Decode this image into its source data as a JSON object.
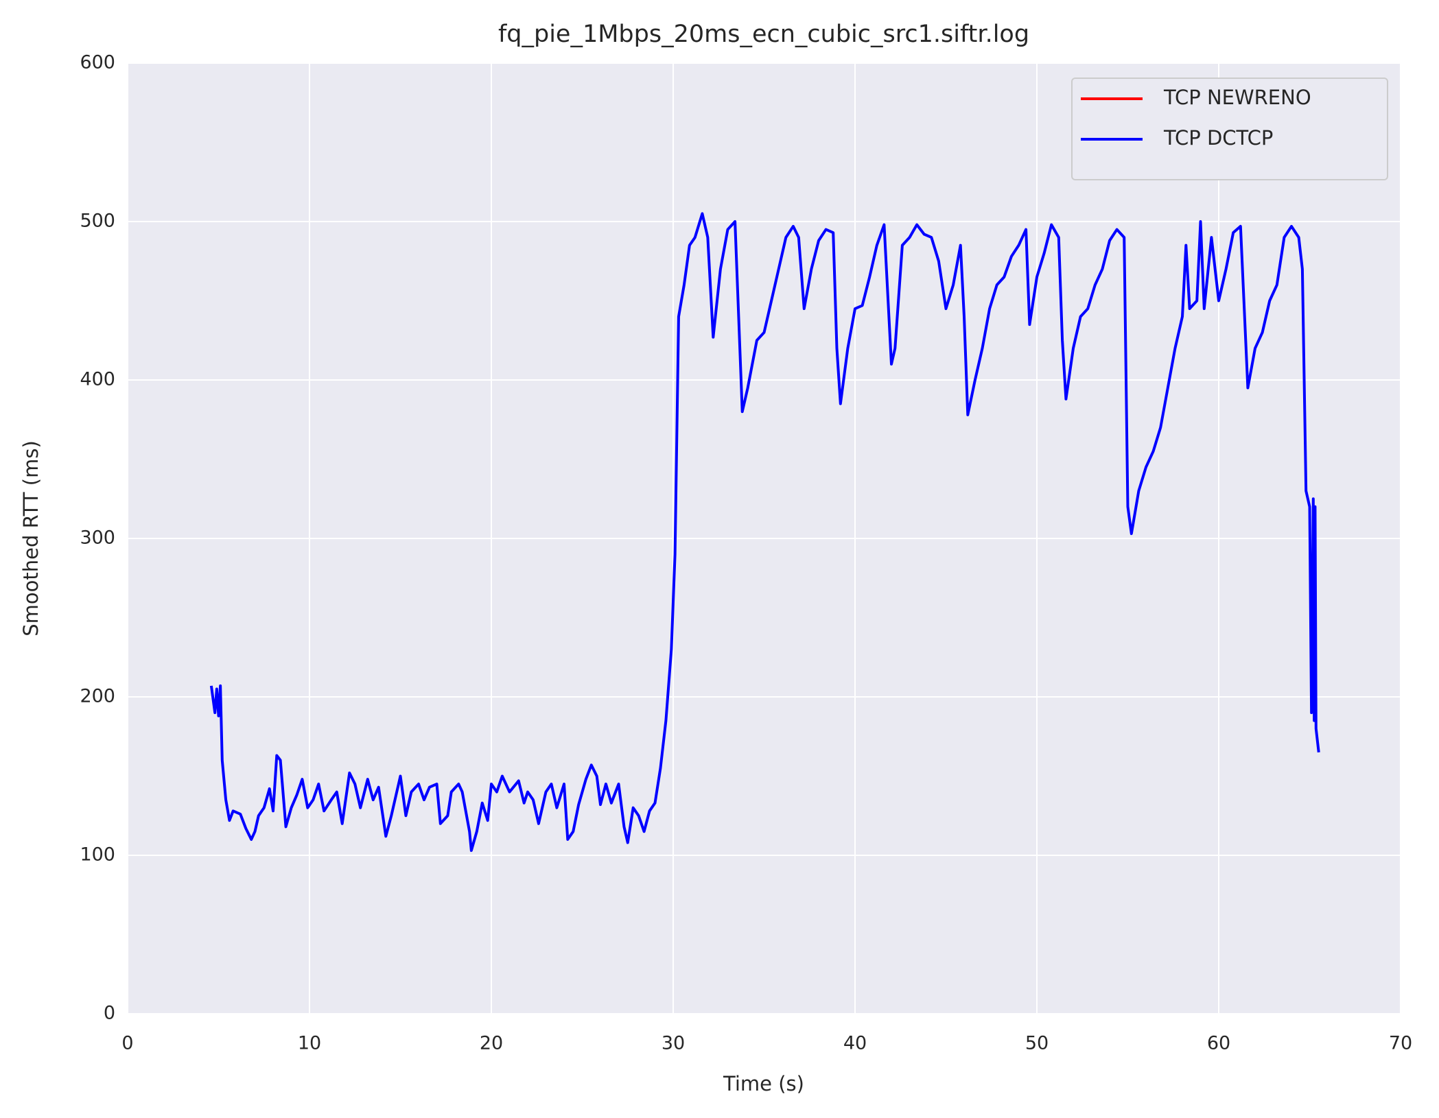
{
  "chart_data": {
    "type": "line",
    "title": "fq_pie_1Mbps_20ms_ecn_cubic_src1.siftr.log",
    "xlabel": "Time (s)",
    "ylabel": "Smoothed RTT (ms)",
    "xlim": [
      0,
      70
    ],
    "xticks": [
      0,
      10,
      20,
      30,
      40,
      50,
      60,
      70
    ],
    "ylim": [
      0,
      600
    ],
    "yticks": [
      0,
      100,
      200,
      300,
      400,
      500,
      600
    ],
    "grid": true,
    "legend": "upper right",
    "series": [
      {
        "name": "TCP NEWRENO",
        "color": "#ff0000",
        "x": [],
        "values": []
      },
      {
        "name": "TCP DCTCP",
        "color": "#0000ff",
        "x": [
          4.6,
          4.8,
          4.9,
          5.0,
          5.1,
          5.2,
          5.4,
          5.6,
          5.8,
          6.2,
          6.5,
          6.8,
          7.0,
          7.2,
          7.5,
          7.8,
          8.0,
          8.2,
          8.4,
          8.7,
          9.0,
          9.3,
          9.6,
          9.9,
          10.2,
          10.5,
          10.8,
          11.2,
          11.5,
          11.8,
          12.2,
          12.5,
          12.8,
          13.2,
          13.5,
          13.8,
          14.2,
          14.5,
          14.8,
          15.0,
          15.3,
          15.6,
          16.0,
          16.3,
          16.6,
          17.0,
          17.2,
          17.6,
          17.8,
          18.2,
          18.4,
          18.8,
          18.9,
          19.2,
          19.5,
          19.8,
          20.0,
          20.3,
          20.6,
          21.0,
          21.5,
          21.8,
          22.0,
          22.3,
          22.6,
          23.0,
          23.3,
          23.6,
          24.0,
          24.2,
          24.5,
          24.8,
          25.2,
          25.5,
          25.8,
          26.0,
          26.3,
          26.6,
          27.0,
          27.3,
          27.5,
          27.8,
          28.1,
          28.4,
          28.7,
          29.0,
          29.3,
          29.6,
          29.9,
          30.1,
          30.3,
          30.6,
          30.9,
          31.2,
          31.6,
          31.9,
          32.2,
          32.6,
          33.0,
          33.4,
          33.8,
          34.1,
          34.6,
          35.0,
          35.4,
          35.8,
          36.2,
          36.6,
          36.9,
          37.2,
          37.6,
          38.0,
          38.4,
          38.8,
          39.0,
          39.2,
          39.6,
          40.0,
          40.4,
          40.8,
          41.2,
          41.6,
          42.0,
          42.2,
          42.6,
          43.0,
          43.4,
          43.8,
          44.2,
          44.6,
          45.0,
          45.4,
          45.8,
          46.0,
          46.2,
          46.6,
          47.0,
          47.4,
          47.8,
          48.2,
          48.6,
          49.0,
          49.4,
          49.6,
          50.0,
          50.4,
          50.8,
          51.2,
          51.4,
          51.6,
          52.0,
          52.4,
          52.8,
          53.2,
          53.6,
          54.0,
          54.4,
          54.8,
          55.0,
          55.2,
          55.6,
          56.0,
          56.4,
          56.8,
          57.2,
          57.6,
          58.0,
          58.2,
          58.4,
          58.8,
          59.0,
          59.2,
          59.6,
          60.0,
          60.4,
          60.8,
          61.2,
          61.6,
          62.0,
          62.4,
          62.8,
          63.2,
          63.6,
          64.0,
          64.4,
          64.6,
          64.8,
          65.0,
          65.1,
          65.2,
          65.25,
          65.3,
          65.35,
          65.5
        ],
        "values": [
          207,
          190,
          205,
          188,
          207,
          160,
          135,
          122,
          128,
          126,
          117,
          110,
          115,
          125,
          130,
          142,
          128,
          163,
          160,
          118,
          130,
          138,
          148,
          130,
          135,
          145,
          128,
          135,
          140,
          120,
          152,
          145,
          130,
          148,
          135,
          143,
          112,
          125,
          140,
          150,
          125,
          140,
          145,
          135,
          143,
          145,
          120,
          125,
          140,
          145,
          140,
          115,
          103,
          115,
          133,
          122,
          145,
          140,
          150,
          140,
          147,
          133,
          140,
          135,
          120,
          140,
          145,
          130,
          145,
          110,
          115,
          132,
          148,
          157,
          150,
          132,
          145,
          133,
          145,
          118,
          108,
          130,
          125,
          115,
          128,
          133,
          155,
          185,
          230,
          290,
          440,
          460,
          485,
          490,
          505,
          490,
          427,
          470,
          495,
          500,
          380,
          395,
          425,
          430,
          450,
          470,
          490,
          497,
          490,
          445,
          470,
          488,
          495,
          493,
          420,
          385,
          420,
          445,
          447,
          465,
          485,
          498,
          410,
          420,
          485,
          490,
          498,
          492,
          490,
          475,
          445,
          460,
          485,
          440,
          378,
          400,
          420,
          445,
          460,
          465,
          478,
          485,
          495,
          435,
          465,
          480,
          498,
          490,
          425,
          388,
          420,
          440,
          445,
          460,
          470,
          488,
          495,
          490,
          320,
          303,
          330,
          345,
          355,
          370,
          395,
          420,
          440,
          485,
          445,
          450,
          500,
          445,
          490,
          450,
          470,
          493,
          497,
          395,
          420,
          430,
          450,
          460,
          490,
          497,
          490,
          470,
          330,
          320,
          190,
          325,
          185,
          320,
          180,
          165
        ]
      }
    ]
  }
}
